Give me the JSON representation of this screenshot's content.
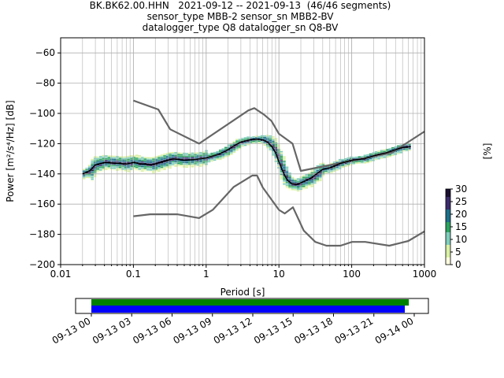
{
  "header": {
    "line1": "BK.BK62.00.HHN   2021-09-12 -- 2021-09-13  (46/46 segments)",
    "line2": "sensor_type MBB-2 sensor_sn MBB2-BV",
    "line3": "datalogger_type Q8 datalogger_sn Q8-BV"
  },
  "chart_data": [
    {
      "type": "heatmap",
      "title": "",
      "xlabel": "Period [s]",
      "xscale": "log",
      "xlim": [
        0.01,
        1000
      ],
      "xticks": [
        "0.01",
        "0.1",
        "1",
        "10",
        "100",
        "1000"
      ],
      "ylabel": "Power [m²/s⁴/Hz] [dB]",
      "ylim": [
        -200,
        -50
      ],
      "yticks": [
        "−200",
        "−180",
        "−160",
        "−140",
        "−120",
        "−100",
        "−80",
        "−60"
      ],
      "grid": true,
      "colorbar": {
        "label": "[%]",
        "range": [
          0,
          30
        ],
        "ticks": [
          "0",
          "5",
          "10",
          "15",
          "20",
          "25",
          "30"
        ],
        "colors": [
          "#ffffe0",
          "#d9f0a3",
          "#7fcdbb",
          "#2ca25f",
          "#1d6f8a",
          "#3b2c6b",
          "#1a1030"
        ]
      },
      "series": [
        {
          "name": "",
          "role": "new high noise model",
          "color": "#666666",
          "x": [
            0.1,
            0.22,
            0.32,
            0.8,
            3.8,
            4.6,
            6.3,
            7.9,
            10,
            15.4,
            20,
            354.8,
            1000
          ],
          "y": [
            -91.5,
            -97.4,
            -110.5,
            -120,
            -98,
            -96.5,
            -101,
            -105,
            -113.5,
            -120,
            -138,
            -126,
            -112
          ]
        },
        {
          "name": "",
          "role": "new low noise model",
          "color": "#666666",
          "x": [
            0.1,
            0.17,
            0.4,
            0.8,
            1.24,
            2.4,
            4.3,
            5.0,
            6.0,
            10,
            12,
            15.6,
            21.9,
            31.6,
            45,
            70,
            101,
            154,
            328,
            600,
            1000
          ],
          "y": [
            -168,
            -166.7,
            -166.7,
            -169.2,
            -163.7,
            -148.6,
            -141.1,
            -141.1,
            -149,
            -163.8,
            -166.2,
            -162.1,
            -177.5,
            -185,
            -187.5,
            -187.5,
            -185,
            -185,
            -187.5,
            -184.4,
            -178
          ]
        },
        {
          "name": "",
          "role": "mode",
          "color": "#000000",
          "x": [
            0.02,
            0.025,
            0.03,
            0.04,
            0.06,
            0.08,
            0.1,
            0.13,
            0.18,
            0.25,
            0.35,
            0.5,
            0.7,
            1.0,
            1.5,
            2.0,
            2.5,
            3.0,
            4.0,
            5.0,
            6.0,
            7.0,
            8.0,
            9.0,
            10,
            11,
            12,
            13,
            15,
            18,
            22,
            27,
            33,
            40,
            50,
            70,
            100,
            150,
            200,
            300,
            400,
            500,
            650
          ],
          "y": [
            -140,
            -138,
            -134,
            -132.5,
            -133,
            -133.5,
            -132.5,
            -133.5,
            -134,
            -132,
            -130,
            -131,
            -130.5,
            -129.5,
            -127,
            -124,
            -121,
            -119,
            -117.5,
            -117,
            -117.5,
            -119,
            -122,
            -126,
            -132,
            -137,
            -141,
            -144,
            -146.5,
            -147,
            -145,
            -143,
            -140,
            -137,
            -136,
            -133,
            -131,
            -130,
            -128,
            -126,
            -124,
            -122.5,
            -122
          ]
        }
      ]
    },
    {
      "type": "bar",
      "title": "",
      "xlabel": "",
      "xticks": [
        "09-13 00",
        "09-13 03",
        "09-13 06",
        "09-13 09",
        "09-13 12",
        "09-13 15",
        "09-13 18",
        "09-13 21",
        "09-14 00"
      ],
      "series": [
        {
          "name": "",
          "role": "data coverage",
          "color": "#008000",
          "start_hours": 0,
          "end_hours": 23.6
        },
        {
          "name": "",
          "role": "used segments",
          "color": "#0000ff",
          "start_hours": 0,
          "end_hours": 23.3
        }
      ]
    }
  ]
}
